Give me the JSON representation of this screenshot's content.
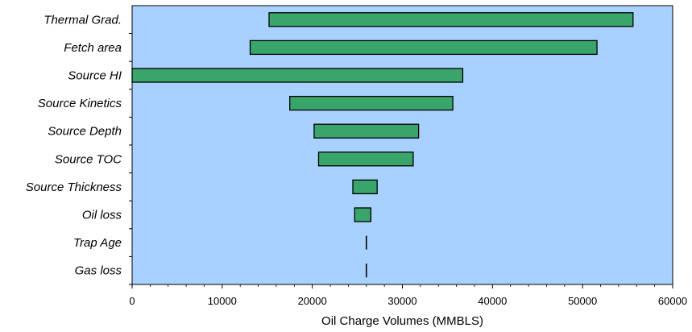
{
  "chart_data": {
    "type": "bar",
    "subtype": "tornado",
    "title": "",
    "xlabel": "Oil Charge Volumes (MMBLS)",
    "ylabel": "",
    "xlim": [
      0,
      60000
    ],
    "xticks": [
      0,
      10000,
      20000,
      30000,
      40000,
      50000,
      60000
    ],
    "categories": [
      "Thermal Grad.",
      "Fetch area",
      "Source HI",
      "Source Kinetics",
      "Source Depth",
      "Source TOC",
      "Source Thickness",
      "Oil loss",
      "Trap Age",
      "Gas loss"
    ],
    "ranges": [
      [
        15200,
        55600
      ],
      [
        13100,
        51600
      ],
      [
        0,
        36700
      ],
      [
        17500,
        35600
      ],
      [
        20200,
        31800
      ],
      [
        20700,
        31200
      ],
      [
        24500,
        27200
      ],
      [
        24700,
        26500
      ],
      [
        26000,
        26000
      ],
      [
        26000,
        26000
      ]
    ],
    "base_value": 26000,
    "grid": false,
    "legend": "none",
    "colors": {
      "plot_background": "#a8d1ff",
      "bar_fill": "#3aa56a",
      "bar_stroke": "#000000"
    }
  }
}
